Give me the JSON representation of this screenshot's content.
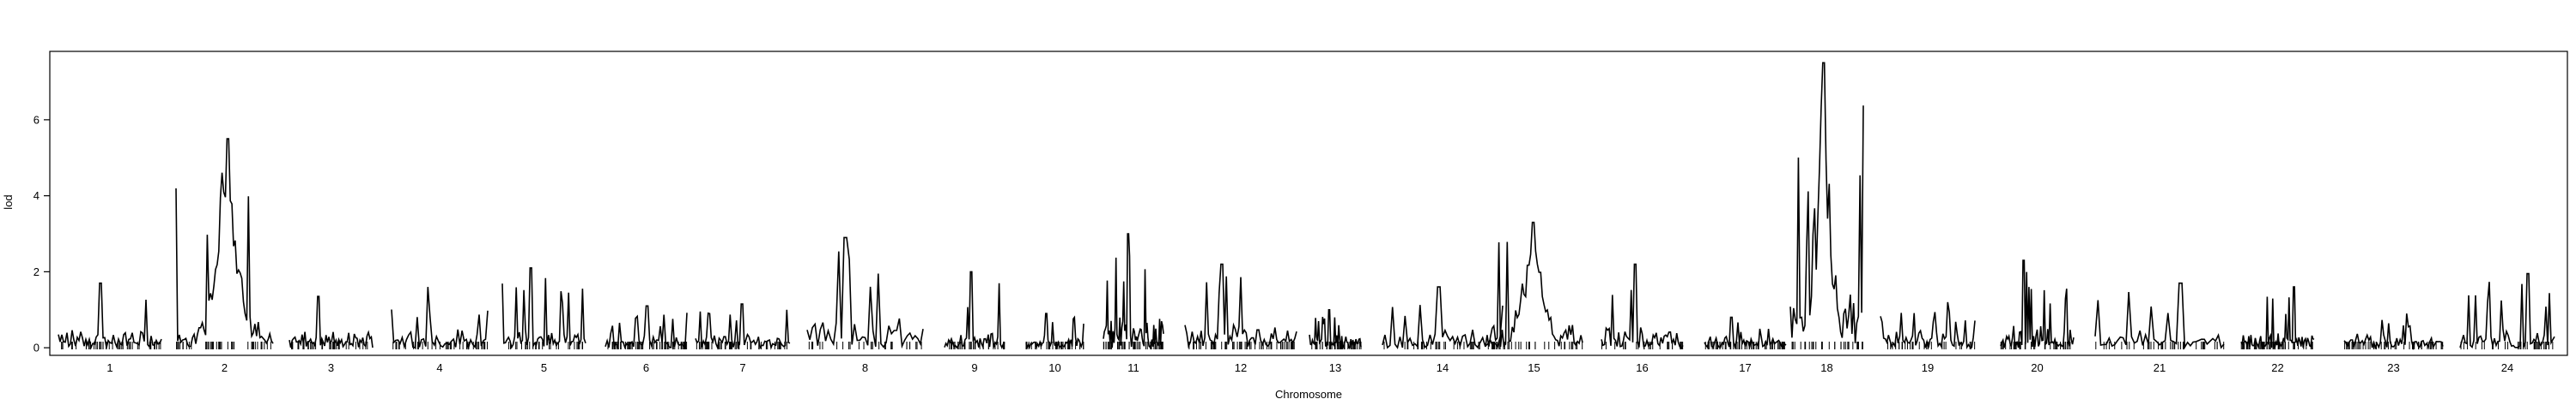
{
  "chart_data": {
    "type": "line",
    "title": "",
    "xlabel": "Chromosome",
    "ylabel": "lod",
    "ylim": [
      -0.2,
      7.8
    ],
    "yticks": [
      0,
      2,
      4,
      6
    ],
    "grid": false,
    "legend": "none",
    "line_color": "#000000",
    "chromosomes": [
      {
        "label": "1",
        "peak": 1.7,
        "bg": 0.55
      },
      {
        "label": "2",
        "peak": 5.5,
        "bg": 0.7
      },
      {
        "label": "3",
        "peak": 1.35,
        "bg": 0.5
      },
      {
        "label": "4",
        "peak": 1.6,
        "bg": 0.6
      },
      {
        "label": "5",
        "peak": 2.1,
        "bg": 0.6
      },
      {
        "label": "6",
        "peak": 1.1,
        "bg": 0.4
      },
      {
        "label": "7",
        "peak": 1.15,
        "bg": 0.45
      },
      {
        "label": "8",
        "peak": 2.9,
        "bg": 0.9
      },
      {
        "label": "9",
        "peak": 2.0,
        "bg": 0.45
      },
      {
        "label": "10",
        "peak": 0.9,
        "bg": 0.4
      },
      {
        "label": "11",
        "peak": 3.0,
        "bg": 1.0
      },
      {
        "label": "12",
        "peak": 2.2,
        "bg": 0.7
      },
      {
        "label": "13",
        "peak": 1.0,
        "bg": 0.4
      },
      {
        "label": "14",
        "peak": 1.6,
        "bg": 0.6
      },
      {
        "label": "15",
        "peak": 3.3,
        "bg": 0.8
      },
      {
        "label": "16",
        "peak": 2.2,
        "bg": 0.6
      },
      {
        "label": "17",
        "peak": 0.8,
        "bg": 0.35
      },
      {
        "label": "18",
        "peak": 7.5,
        "bg": 2.5
      },
      {
        "label": "19",
        "peak": 1.2,
        "bg": 0.5
      },
      {
        "label": "20",
        "peak": 2.3,
        "bg": 0.6
      },
      {
        "label": "21",
        "peak": 1.7,
        "bg": 0.5
      },
      {
        "label": "22",
        "peak": 1.6,
        "bg": 0.5
      },
      {
        "label": "23",
        "peak": 0.9,
        "bg": 0.4
      },
      {
        "label": "24",
        "peak": 1.95,
        "bg": 0.6
      }
    ]
  }
}
